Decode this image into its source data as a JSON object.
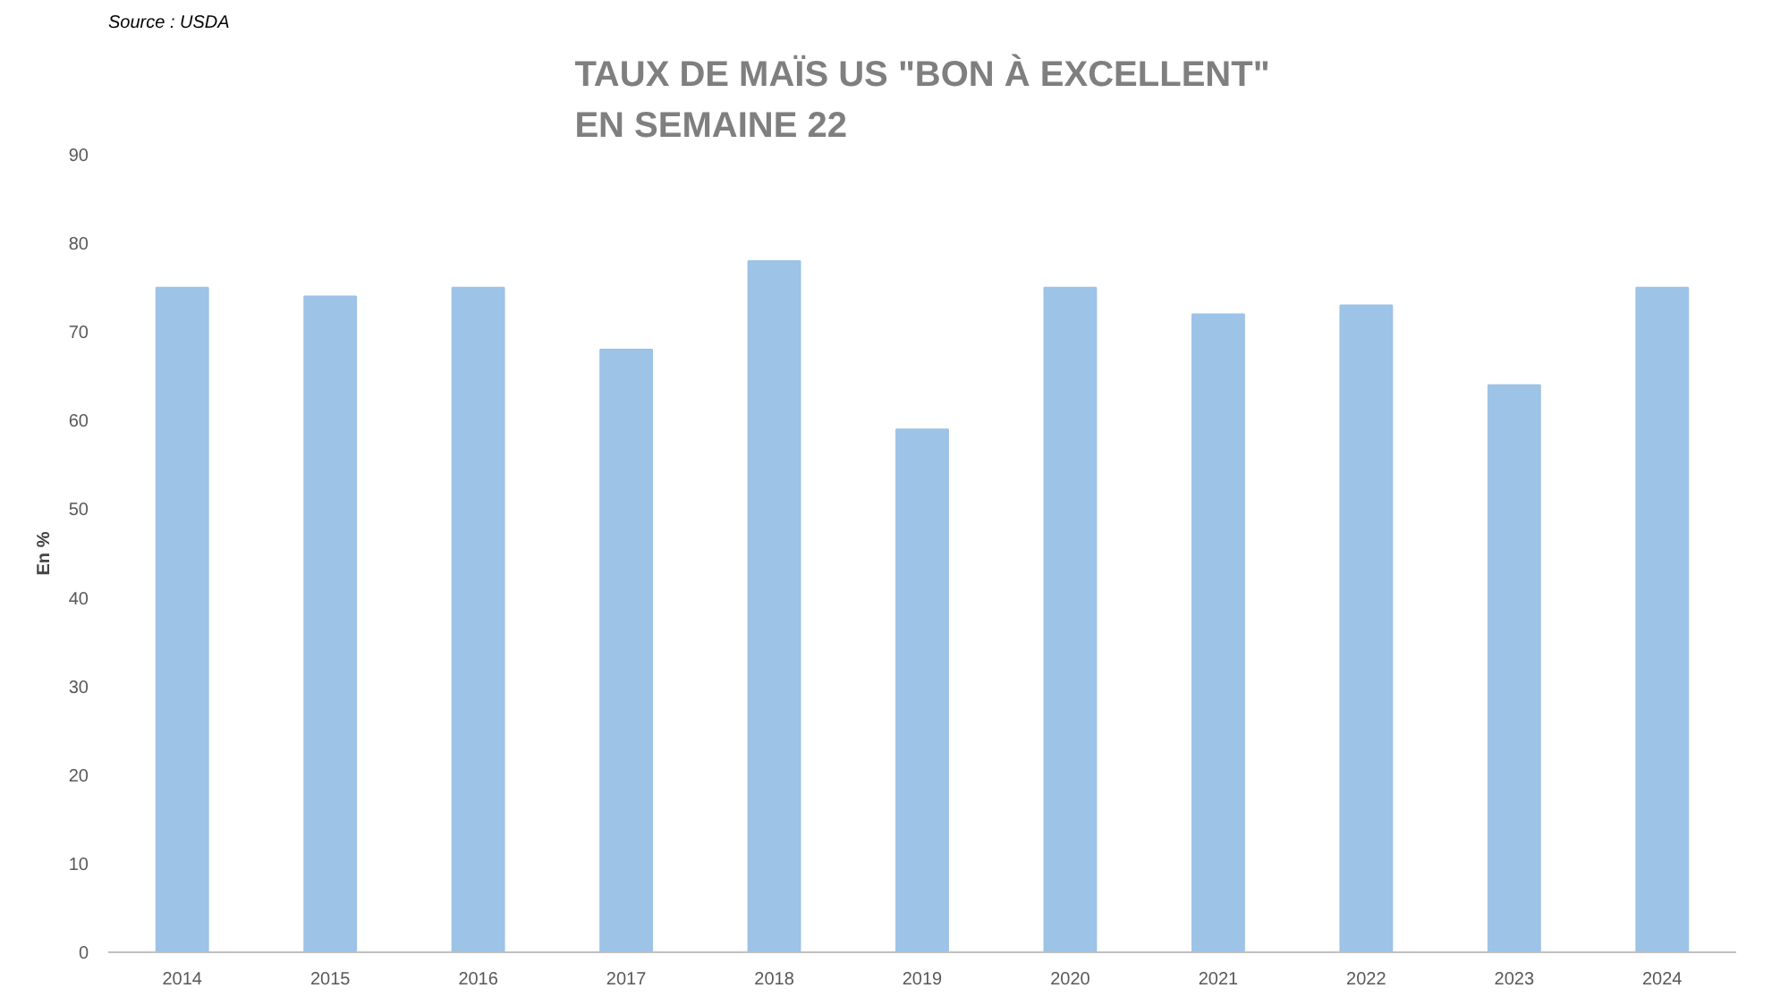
{
  "chart_data": {
    "type": "bar",
    "title": "TAUX DE MAÏS US \"BON À EXCELLENT\"\nEN SEMAINE 22",
    "ylabel": "En %",
    "annotations": [
      "Source : USDA"
    ],
    "categories": [
      "2014",
      "2015",
      "2016",
      "2017",
      "2018",
      "2019",
      "2020",
      "2021",
      "2022",
      "2023",
      "2024"
    ],
    "values": [
      75,
      74,
      75,
      68,
      78,
      59,
      75,
      72,
      73,
      64,
      75
    ],
    "color": "#9dc3e6",
    "ylim": [
      0,
      90
    ],
    "yticks": [
      0,
      10,
      20,
      30,
      40,
      50,
      60,
      70,
      80,
      90
    ],
    "grid": false
  }
}
